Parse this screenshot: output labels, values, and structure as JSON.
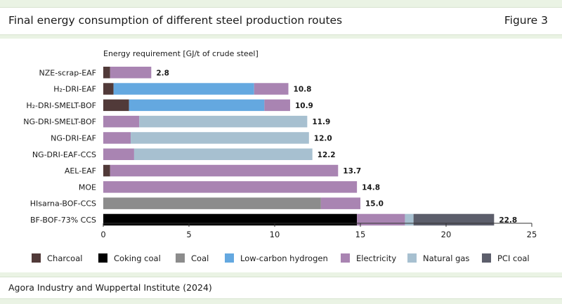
{
  "header": {
    "title": "Final energy consumption of different steel production routes",
    "figure_label": "Figure 3"
  },
  "footer": {
    "source": "Agora Industry and Wuppertal Institute (2024)"
  },
  "chart_data": {
    "type": "bar",
    "orientation": "horizontal",
    "stacked": true,
    "title": "",
    "ylabel": "Energy requirement [GJ/t of crude steel]",
    "xlim": [
      0,
      25
    ],
    "x_ticks": [
      0,
      5,
      10,
      15,
      20,
      25
    ],
    "grid": false,
    "legend_position": "bottom",
    "categories": [
      "NZE-scrap-EAF",
      "H2-DRI-EAF",
      "H2-DRI-SMELT-BOF",
      "NG-DRI-SMELT-BOF",
      "NG-DRI-EAF",
      "NG-DRI-EAF-CCS",
      "AEL-EAF",
      "MOE",
      "HIsarna-BOF-CCS",
      "BF-BOF-73% CCS"
    ],
    "category_labels": [
      "NZE-scrap-EAF",
      "H₂-DRI-EAF",
      "H₂-DRI-SMELT-BOF",
      "NG-DRI-SMELT-BOF",
      "NG-DRI-EAF",
      "NG-DRI-EAF-CCS",
      "AEL-EAF",
      "MOE",
      "HIsarna-BOF-CCS",
      "BF-BOF-73% CCS"
    ],
    "totals": [
      "2.8",
      "10.8",
      "10.9",
      "11.9",
      "12.0",
      "12.2",
      "13.7",
      "14.8",
      "15.0",
      "22.8"
    ],
    "series": [
      {
        "name": "Charcoal",
        "color": "#513a39",
        "values": [
          0.4,
          0.6,
          1.5,
          0,
          0,
          0,
          0.4,
          0,
          0,
          0
        ]
      },
      {
        "name": "Coking coal",
        "color": "#000000",
        "values": [
          0,
          0,
          0,
          0,
          0,
          0,
          0,
          0,
          0,
          14.8
        ]
      },
      {
        "name": "Coal",
        "color": "#8c8c8c",
        "values": [
          0,
          0,
          0,
          0,
          0,
          0,
          0,
          0,
          12.7,
          0
        ]
      },
      {
        "name": "Low-carbon hydrogen",
        "color": "#64a8e0",
        "values": [
          0,
          8.2,
          7.9,
          0,
          0,
          0,
          0,
          0,
          0,
          0
        ]
      },
      {
        "name": "Electricity",
        "color": "#a984b2",
        "values": [
          2.4,
          2.0,
          1.5,
          2.1,
          1.6,
          1.8,
          13.3,
          14.8,
          2.3,
          2.8
        ]
      },
      {
        "name": "Natural gas",
        "color": "#a7c0d0",
        "values": [
          0,
          0,
          0,
          9.8,
          10.4,
          10.4,
          0,
          0,
          0,
          0.5
        ]
      },
      {
        "name": "PCI coal",
        "color": "#5c5e6b",
        "values": [
          0,
          0,
          0,
          0,
          0,
          0,
          0,
          0,
          0,
          4.7
        ]
      }
    ]
  }
}
